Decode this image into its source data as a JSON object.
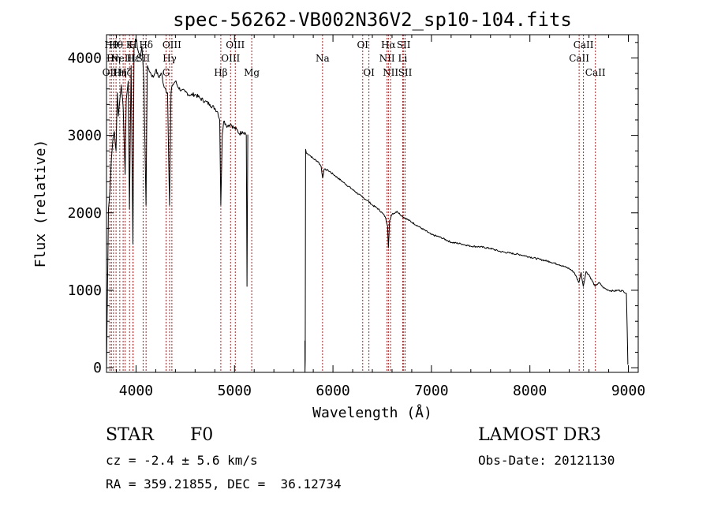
{
  "chart_data": {
    "type": "line",
    "title": "spec-56262-VB002N36V2_sp10-104.fits",
    "xlabel": "Wavelength (Å)",
    "ylabel": "Flux (relative)",
    "xlim": [
      3700,
      9100
    ],
    "ylim": [
      -60,
      4300
    ],
    "x_ticks": [
      4000,
      5000,
      6000,
      7000,
      8000,
      9000
    ],
    "y_ticks": [
      0,
      1000,
      2000,
      3000,
      4000
    ],
    "grid": false,
    "line_color": "#000000",
    "marker_color": "#b22222",
    "series": [
      {
        "name": "spectrum segment 1",
        "x": [
          3700,
          3720,
          3735,
          3750,
          3765,
          3780,
          3797,
          3810,
          3820,
          3835,
          3850,
          3870,
          3889,
          3900,
          3920,
          3933,
          3950,
          3968,
          3980,
          4000,
          4020,
          4040,
          4060,
          4080,
          4101,
          4115,
          4130,
          4150,
          4175,
          4200,
          4230,
          4260,
          4280,
          4300,
          4320,
          4340,
          4355,
          4370,
          4400,
          4430,
          4460,
          4500,
          4550,
          4600,
          4650,
          4700,
          4750,
          4800,
          4830,
          4850,
          4861,
          4875,
          4890,
          4910,
          4930,
          4960,
          4990,
          5020,
          5050,
          5080,
          5110,
          5120,
          5127,
          5135
        ],
        "y": [
          -30,
          2050,
          2300,
          2700,
          2950,
          3050,
          2800,
          3550,
          3250,
          3450,
          3650,
          3350,
          2500,
          3450,
          3700,
          2050,
          3900,
          1600,
          4150,
          4250,
          4100,
          4000,
          4150,
          3700,
          2100,
          3900,
          3850,
          3800,
          3750,
          3850,
          3750,
          3800,
          3650,
          3600,
          3550,
          2100,
          3550,
          3650,
          3700,
          3620,
          3580,
          3560,
          3520,
          3530,
          3480,
          3440,
          3400,
          3350,
          3300,
          3200,
          2100,
          3000,
          3180,
          3150,
          3120,
          3150,
          3100,
          3080,
          3020,
          3050,
          3030,
          3000,
          1050,
          3010
        ]
      },
      {
        "name": "spectrum segment 2",
        "x": [
          5715,
          5716,
          5718,
          5722,
          5730,
          5760,
          5800,
          5850,
          5880,
          5895,
          5910,
          5950,
          6000,
          6100,
          6200,
          6300,
          6350,
          6400,
          6450,
          6500,
          6530,
          6555,
          6563,
          6575,
          6600,
          6650,
          6700,
          6800,
          6900,
          7000,
          7100,
          7200,
          7300,
          7400,
          7500,
          7600,
          7700,
          7800,
          7900,
          8000,
          8100,
          8200,
          8300,
          8400,
          8450,
          8498,
          8520,
          8542,
          8570,
          8600,
          8662,
          8700,
          8750,
          8800,
          8850,
          8900,
          8950,
          8980,
          8995
        ],
        "y": [
          350,
          -60,
          100,
          2820,
          2770,
          2750,
          2700,
          2660,
          2600,
          2450,
          2560,
          2550,
          2500,
          2400,
          2300,
          2200,
          2160,
          2100,
          2060,
          2000,
          1950,
          1830,
          1550,
          1900,
          1980,
          2020,
          1960,
          1880,
          1800,
          1720,
          1680,
          1620,
          1600,
          1570,
          1560,
          1540,
          1500,
          1480,
          1460,
          1430,
          1400,
          1370,
          1330,
          1280,
          1230,
          1100,
          1230,
          1050,
          1240,
          1200,
          1050,
          1100,
          1030,
          1000,
          990,
          1000,
          990,
          960,
          40
        ]
      }
    ],
    "line_markers": [
      {
        "w": 3734,
        "label": "OII",
        "row": 2
      },
      {
        "w": 3750,
        "label": "Hθ",
        "row": 0
      },
      {
        "w": 3771,
        "label": "Hη",
        "row": 1
      },
      {
        "w": 3797,
        "label": "Hθ",
        "row": 0
      },
      {
        "w": 3835,
        "label": "Hη",
        "row": 2
      },
      {
        "w": 3869,
        "label": "NeIII",
        "row": 1
      },
      {
        "w": 3889,
        "label": "Hζ",
        "row": 2
      },
      {
        "w": 3934,
        "label": "K",
        "row": 0
      },
      {
        "w": 3969,
        "label": "H",
        "row": 0
      },
      {
        "w": 3970,
        "label": "Hε",
        "row": 1
      },
      {
        "w": 4072,
        "label": "SII",
        "row": 1
      },
      {
        "w": 4102,
        "label": "Hδ",
        "row": 0
      },
      {
        "w": 4305,
        "label": "G",
        "row": 2
      },
      {
        "w": 4341,
        "label": "Hγ",
        "row": 1
      },
      {
        "w": 4364,
        "label": "OIII",
        "row": 0
      },
      {
        "w": 4861,
        "label": "Hβ",
        "row": 2
      },
      {
        "w": 4960,
        "label": "OIII",
        "row": 1
      },
      {
        "w": 5008,
        "label": "OIII",
        "row": 0
      },
      {
        "w": 5175,
        "label": "Mg",
        "row": 2
      },
      {
        "w": 5894,
        "label": "Na",
        "row": 1
      },
      {
        "w": 6302,
        "label": "OI",
        "row": 0
      },
      {
        "w": 6365,
        "label": "OI",
        "row": 2
      },
      {
        "w": 6549,
        "label": "NII",
        "row": 1
      },
      {
        "w": 6563,
        "label": "Hα",
        "row": 0
      },
      {
        "w": 6585,
        "label": "NII",
        "row": 2
      },
      {
        "w": 6708,
        "label": "Li",
        "row": 1
      },
      {
        "w": 6718,
        "label": "SII",
        "row": 0
      },
      {
        "w": 6733,
        "label": "SII",
        "row": 2
      },
      {
        "w": 8500,
        "label": "CaII",
        "row": 1
      },
      {
        "w": 8544,
        "label": "CaII",
        "row": 0
      },
      {
        "w": 8665,
        "label": "CaII",
        "row": 2
      }
    ]
  },
  "info": {
    "class_label": "STAR",
    "subclass": "F0",
    "survey": "LAMOST DR3",
    "cz": "cz = -2.4 ± 5.6 km/s",
    "obs_date": "Obs-Date: 20121130",
    "radec": "RA = 359.21855, DEC =  36.12734"
  }
}
